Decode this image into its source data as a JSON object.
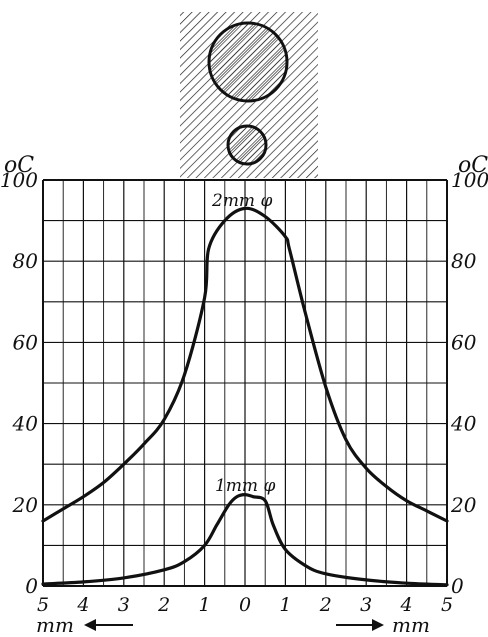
{
  "chart_data": {
    "type": "line",
    "xlabel_left": "mm",
    "xlabel_right": "mm",
    "ylabel": "oC",
    "ylim": [
      0,
      100
    ],
    "xlim": [
      -5,
      5
    ],
    "grid": true,
    "x_ticks": [
      "5",
      "4",
      "3",
      "2",
      "1",
      "0",
      "1",
      "2",
      "3",
      "4",
      "5"
    ],
    "y_ticks": [
      "0",
      "20",
      "40",
      "60",
      "80",
      "100"
    ],
    "series": [
      {
        "name": "2mm φ",
        "x": [
          -5,
          -4.5,
          -4,
          -3.5,
          -3,
          -2.5,
          -2,
          -1.5,
          -1,
          -0.9,
          -0.5,
          0,
          0.5,
          1,
          1.1,
          1.5,
          2,
          2.5,
          3,
          3.5,
          4,
          4.5,
          5
        ],
        "y": [
          16,
          19,
          22,
          25.5,
          30,
          35,
          41,
          52,
          71,
          83,
          90,
          93,
          91,
          86,
          83,
          67,
          49,
          36,
          29,
          24.5,
          21,
          18.5,
          16
        ]
      },
      {
        "name": "1mm φ",
        "x": [
          -5,
          -4,
          -3,
          -2,
          -1.5,
          -1,
          -0.7,
          -0.4,
          -0.2,
          0,
          0.2,
          0.5,
          0.7,
          1,
          1.5,
          2,
          3,
          4,
          5
        ],
        "y": [
          0.5,
          1,
          2,
          4,
          6,
          10,
          15,
          20,
          22,
          22.5,
          22,
          21,
          15,
          9,
          5,
          3,
          1.5,
          0.7,
          0.3
        ]
      }
    ]
  },
  "figure": {
    "top_unit_label": "oC",
    "top_unit_label_right": "oC",
    "arrow_glyph_left": "←",
    "arrow_glyph_right": "→"
  }
}
